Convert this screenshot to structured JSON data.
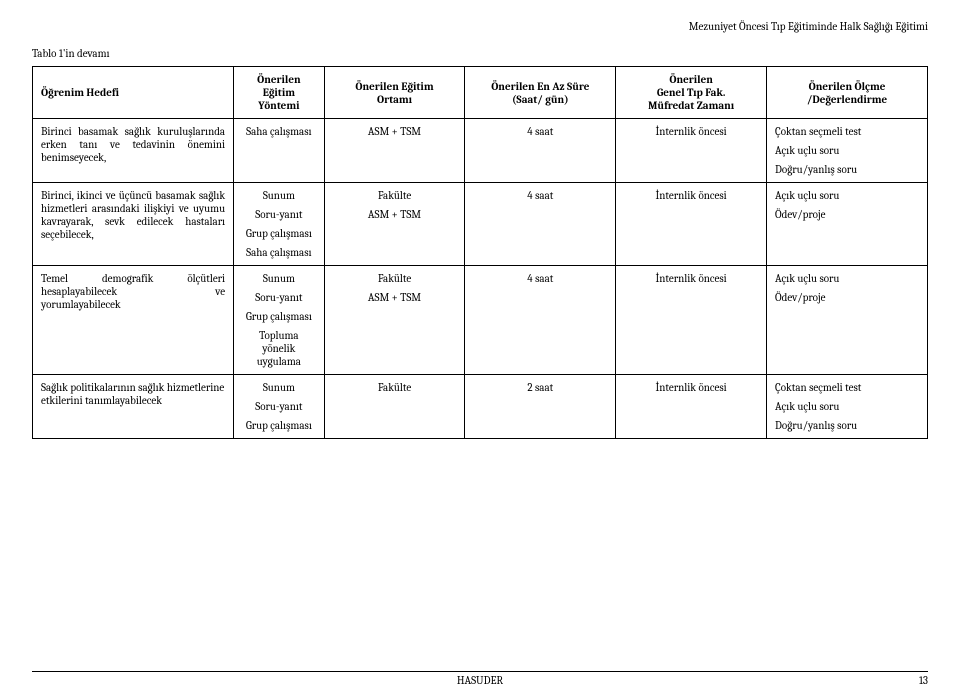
{
  "header_right": "Mezuniyet Öncesi Tıp Eğitiminde Halk Sağlığı Eğitimi",
  "caption": "Tablo 1'in devamı",
  "columns": {
    "c0": "Öğrenim Hedefi",
    "c1_l1": "Önerilen",
    "c1_l2": "Eğitim",
    "c1_l3": "Yöntemi",
    "c2_l1": "Önerilen Eğitim",
    "c2_l2": "Ortamı",
    "c3_l1": "Önerilen En Az Süre",
    "c3_l2": "(Saat/ gün)",
    "c4_l1": "Önerilen",
    "c4_l2": "Genel Tıp Fak.",
    "c4_l3": "Müfredat Zamanı",
    "c5_l1": "Önerilen Ölçme",
    "c5_l2": "/Değerlendirme"
  },
  "rows": [
    {
      "obj": "Birinci basamak sağlık kuruluşlarında erken tanı ve tedavinin önemini benimseyecek,",
      "met": [
        "Saha çalışması"
      ],
      "env": [
        "ASM + TSM"
      ],
      "dur": "4 saat",
      "time": "İnternlik öncesi",
      "eval": [
        "Çoktan seçmeli test",
        "Açık uçlu soru",
        "Doğru/yanlış soru"
      ]
    },
    {
      "obj": "Birinci, ikinci ve üçüncü basamak sağlık hizmetleri arasındaki ilişkiyi ve uyumu kavrayarak, sevk edilecek hastaları seçebilecek,",
      "met": [
        "Sunum",
        "Soru-yanıt",
        "Grup çalışması",
        "Saha çalışması"
      ],
      "env": [
        "Fakülte",
        "ASM + TSM"
      ],
      "dur": "4 saat",
      "time": "İnternlik öncesi",
      "eval": [
        "Açık uçlu soru",
        "Ödev/proje"
      ]
    },
    {
      "obj_l1": "Temel",
      "obj_l1b": "demografik",
      "obj_l1c": "ölçütleri",
      "obj_l2a": "hesaplayabilecek",
      "obj_l2b": "ve",
      "obj_l3": "yorumlayabilecek",
      "met": [
        "Sunum",
        "Soru-yanıt",
        "Grup çalışması",
        "Topluma yönelik uygulama"
      ],
      "env": [
        "Fakülte",
        "ASM + TSM"
      ],
      "dur": "4 saat",
      "time": "İnternlik öncesi",
      "eval": [
        "Açık uçlu soru",
        "Ödev/proje"
      ]
    },
    {
      "obj": "Sağlık politikalarının sağlık hizmetlerine etkilerini tanımlayabilecek",
      "met": [
        "Sunum",
        "Soru-yanıt",
        "Grup çalışması"
      ],
      "env": [
        "Fakülte"
      ],
      "dur": "2 saat",
      "time": "İnternlik öncesi",
      "eval": [
        "Çoktan seçmeli test",
        "Açık uçlu soru",
        "Doğru/yanlış soru"
      ]
    }
  ],
  "footer_center": "HASUDER",
  "footer_page": "13"
}
